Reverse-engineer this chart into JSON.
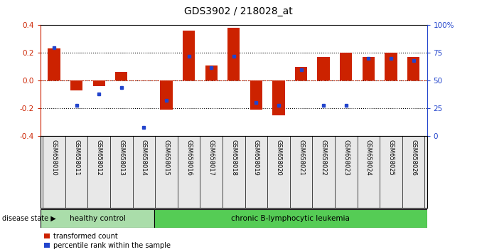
{
  "title": "GDS3902 / 218028_at",
  "samples": [
    "GSM658010",
    "GSM658011",
    "GSM658012",
    "GSM658013",
    "GSM658014",
    "GSM658015",
    "GSM658016",
    "GSM658017",
    "GSM658018",
    "GSM658019",
    "GSM658020",
    "GSM658021",
    "GSM658022",
    "GSM658023",
    "GSM658024",
    "GSM658025",
    "GSM658026"
  ],
  "red_bars": [
    0.23,
    -0.07,
    -0.04,
    0.065,
    0.0,
    -0.21,
    0.36,
    0.11,
    0.38,
    -0.21,
    -0.25,
    0.1,
    0.17,
    0.2,
    0.17,
    0.2,
    0.17
  ],
  "blue_dots_pct": [
    80,
    28,
    38,
    44,
    8,
    32,
    72,
    62,
    72,
    30,
    28,
    60,
    28,
    28,
    70,
    70,
    68
  ],
  "ylim": [
    -0.4,
    0.4
  ],
  "yticks_left": [
    -0.4,
    -0.2,
    0.0,
    0.2,
    0.4
  ],
  "yticks_right": [
    0,
    25,
    50,
    75,
    100
  ],
  "group1_label": "healthy control",
  "group2_label": "chronic B-lymphocytic leukemia",
  "group1_count": 5,
  "group2_count": 12,
  "disease_state_label": "disease state",
  "legend1_label": "transformed count",
  "legend2_label": "percentile rank within the sample",
  "red_color": "#cc2200",
  "blue_color": "#2244cc",
  "group1_color": "#aaddaa",
  "group2_color": "#55cc55",
  "bar_width": 0.55
}
